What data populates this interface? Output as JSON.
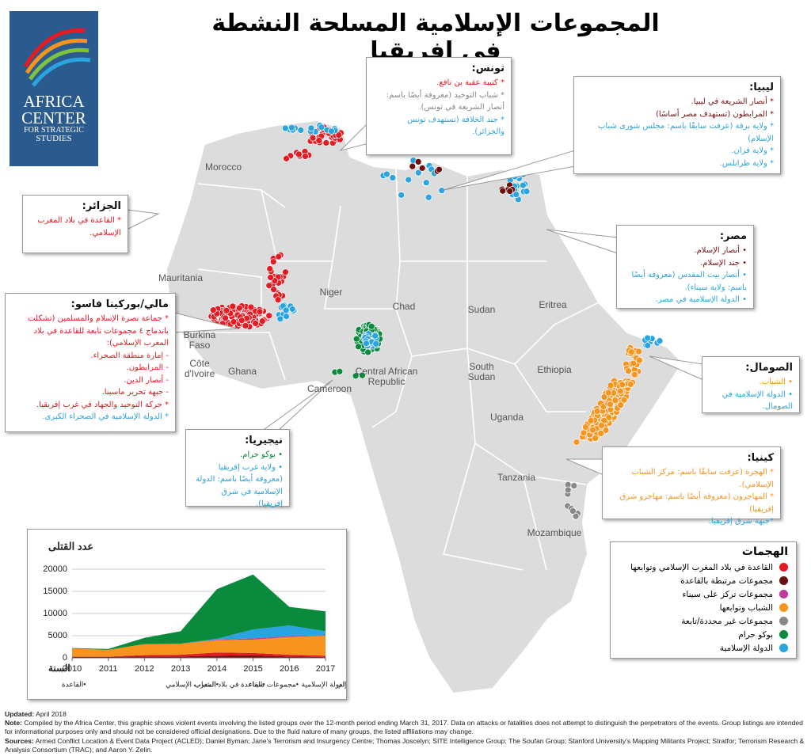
{
  "title": "المجموعات الإسلامية المسلحة النشطة في إفريقيا",
  "logo": [
    "AFRICA",
    "CENTER",
    "FOR STRATEGIC",
    "STUDIES"
  ],
  "countries": [
    "Morocco",
    "Mauritania",
    "Niger",
    "Chad",
    "Sudan",
    "Eritrea",
    "Burkina Faso",
    "Côte d'Ivoire",
    "Ghana",
    "Cameroon",
    "Central African Republic",
    "South Sudan",
    "Ethiopia",
    "Uganda",
    "Tanzania",
    "Mozambique"
  ],
  "callouts": [
    {
      "title": "تونس:",
      "items": [
        {
          "text": "* كتيبة عقبة بن نافع.",
          "color": "#e31b23"
        },
        {
          "text": "* شباب التوحيد (معروفة أيضًا باسم: أنصار الشريعة في تونس).",
          "color": "#888888"
        },
        {
          "text": "* جند الخلافة (تستهدف تونس والجزائر).",
          "color": "#2aa4e0"
        }
      ]
    },
    {
      "title": "ليبيا:",
      "items": [
        {
          "text": "* أنصار الشريعة في ليبيا.",
          "color": "#7a1414"
        },
        {
          "text": "* المرابطون (تستهدف مصر أساسًا)",
          "color": "#7a1414"
        },
        {
          "text": "* ولاية برقة (عرفت سابقًا باسم: مجلس شورى شباب الإسلام)",
          "color": "#2aa4e0"
        },
        {
          "text": "* ولاية فزان.",
          "color": "#2aa4e0"
        },
        {
          "text": "* ولاية طرابلس.",
          "color": "#2aa4e0"
        }
      ]
    },
    {
      "title": "الجزائر:",
      "items": [
        {
          "text": "* القاعدة في بلاد المغرب الإسلامي.",
          "color": "#e31b23"
        }
      ]
    },
    {
      "title": "مصر:",
      "items": [
        {
          "text": "• أنصار الإسلام.",
          "color": "#7a1414"
        },
        {
          "text": "• جند الإسلام.",
          "color": "#7a1414"
        },
        {
          "text": "• أنصار بيت المقدس (معروفة أيضًا باسم: ولاية سيناء).",
          "color": "#2aa4e0"
        },
        {
          "text": "• الدولة الإسلامية في مصر.",
          "color": "#2aa4e0"
        }
      ]
    },
    {
      "title": "مالي/بوركينا فاسو:",
      "items": [
        {
          "text": "* جماعة نصرة الإسلام والمسلمين (تشكلت باندماج ٤ مجموعات تابعة للقاعدة في بلاد المغرب الإسلامي):",
          "color": "#e31b23"
        },
        {
          "text": "- إمارة منطقة الصحراء.",
          "color": "#e31b23"
        },
        {
          "text": "- المرابطون.",
          "color": "#e31b23"
        },
        {
          "text": "- أنصار الدين.",
          "color": "#e31b23"
        },
        {
          "text": "- جبهة تحرير ماسينا.",
          "color": "#e31b23"
        },
        {
          "text": "* حركة التوحيد والجهاد في غرب إفريقيا.",
          "color": "#e31b23"
        },
        {
          "text": "* الدولة الإسلامية في الصحراء الكبرى.",
          "color": "#2aa4e0"
        }
      ]
    },
    {
      "title": "الصومال:",
      "items": [
        {
          "text": "• الشباب.",
          "color": "#f7941d"
        },
        {
          "text": "• الدولة الإسلامية في الصومال.",
          "color": "#2aa4e0"
        }
      ]
    },
    {
      "title": "نيجيريا:",
      "items": [
        {
          "text": "• بوكو حرام.",
          "color": "#0a8a3c"
        },
        {
          "text": "• ولاية غرب إفريقيا (معروفة أيضًا باسم: الدولة الإسلامية في شرق إفريقيا).",
          "color": "#2aa4e0"
        }
      ]
    },
    {
      "title": "كينيا:",
      "items": [
        {
          "text": "* الهجرة (عرفت سابقًا باسم: مركز الشباب الإسلامي).",
          "color": "#f7941d"
        },
        {
          "text": "* المهاجرون (معروفة أيضًا باسم: مهاجرو شرق إفريقيا)",
          "color": "#f7941d"
        },
        {
          "text": "*جبهة شرق إفريقيا.",
          "color": "#2aa4e0"
        }
      ]
    }
  ],
  "legend": {
    "title": "الهجمات",
    "items": [
      {
        "name": "القاعدة في بلاد المغرب الإسلامي وتوابعها",
        "color": "#e31b23"
      },
      {
        "name": "مجموعات مرتبطة بالقاعدة",
        "color": "#6b0f0f"
      },
      {
        "name": "مجموعات تركز على سيناء",
        "color": "#c0399b"
      },
      {
        "name": "الشباب وتوابعها",
        "color": "#f7941d"
      },
      {
        "name": "مجموعات غير محددة/تابعة",
        "color": "#888888"
      },
      {
        "name": "بوكو حرام",
        "color": "#0a8a3c"
      },
      {
        "name": "الدولة الإسلامية",
        "color": "#2aa4e0"
      }
    ]
  },
  "chart_data": {
    "type": "stacked_area",
    "title": "عدد القتلى",
    "xlabel": "السنة",
    "x": [
      2010,
      2011,
      2012,
      2013,
      2014,
      2015,
      2016,
      2017
    ],
    "xlim": [
      2010,
      2017
    ],
    "xticks": [
      2010,
      2011,
      2012,
      2013,
      2014,
      2015,
      2016,
      2017
    ],
    "ylim": [
      0,
      20000
    ],
    "yticks": [
      0,
      5000,
      10000,
      15000,
      20000
    ],
    "grid": true,
    "series": [
      {
        "name": "•القاعدة",
        "color": "#7a0f0f",
        "values": [
          200,
          200,
          300,
          300,
          500,
          600,
          300,
          200
        ]
      },
      {
        "name": "•القاعدة في بلاد المغرب الإسلامي",
        "color": "#e31b23",
        "values": [
          100,
          100,
          300,
          400,
          700,
          500,
          400,
          300
        ]
      },
      {
        "name": "•الشباب",
        "color": "#f7941d",
        "values": [
          1800,
          1500,
          2500,
          2500,
          2800,
          3000,
          4000,
          4500
        ]
      },
      {
        "name": "•مجموعات سيناء",
        "color": "#c0399b",
        "values": [
          0,
          0,
          0,
          0,
          100,
          300,
          200,
          100
        ]
      },
      {
        "name": "•الدولة الإسلامية",
        "color": "#2aa4e0",
        "values": [
          0,
          0,
          0,
          0,
          200,
          2000,
          2400,
          900
        ]
      },
      {
        "name": "•بوكو حرام",
        "color": "#0a8a3c",
        "values": [
          100,
          200,
          1400,
          2800,
          11200,
          12400,
          4200,
          4500
        ]
      }
    ]
  },
  "footer": {
    "updated_label": "Updated:",
    "updated": "April 2018",
    "note_label": "Note:",
    "note": "Compiled by the Africa Center, this graphic shows violent events involving the listed groups over the 12-month period ending March 31, 2017. Data on attacks or fatalities does not attempt to distinguish the perpetrators of the events. Group listings are intended for informational purposes only and should not be considered official designations. Due to the fluid nature of many groups, the listed affiliations may change.",
    "sources_label": "Sources:",
    "sources": "Armed Conflict Location & Event Data Project (ACLED); Daniel Byman; Jane’s Terrorism and Insurgency Centre; Thomas Joscelyn; SITE Intelligence Group; The Soufan Group; Stanford University’s Mapping Militants Project; Stratfor; Terrorism Research & Analysis Consortium (TRAC); and Aaron Y. Zelin."
  }
}
